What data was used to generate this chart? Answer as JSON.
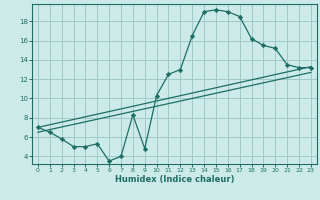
{
  "xlabel": "Humidex (Indice chaleur)",
  "bg_color": "#cceae7",
  "grid_color": "#9ecac6",
  "line_color": "#1e6e65",
  "xlim": [
    -0.5,
    23.5
  ],
  "ylim": [
    3.2,
    19.8
  ],
  "xticks": [
    0,
    1,
    2,
    3,
    4,
    5,
    6,
    7,
    8,
    9,
    10,
    11,
    12,
    13,
    14,
    15,
    16,
    17,
    18,
    19,
    20,
    21,
    22,
    23
  ],
  "yticks": [
    4,
    6,
    8,
    10,
    12,
    14,
    16,
    18
  ],
  "curve_x": [
    0,
    1,
    2,
    3,
    4,
    5,
    6,
    7,
    8,
    9,
    10,
    11,
    12,
    13,
    14,
    15,
    16,
    17,
    18,
    19,
    20,
    21,
    22,
    23
  ],
  "curve_y": [
    7.0,
    6.5,
    5.8,
    5.0,
    5.0,
    5.3,
    3.5,
    4.0,
    8.3,
    4.8,
    10.3,
    12.5,
    13.0,
    16.5,
    19.0,
    19.2,
    19.0,
    18.5,
    16.2,
    15.5,
    15.2,
    13.5,
    13.2,
    13.2
  ],
  "line1_x": [
    0,
    23
  ],
  "line1_y": [
    7.0,
    13.3
  ],
  "line2_x": [
    0,
    23
  ],
  "line2_y": [
    6.5,
    12.7
  ]
}
